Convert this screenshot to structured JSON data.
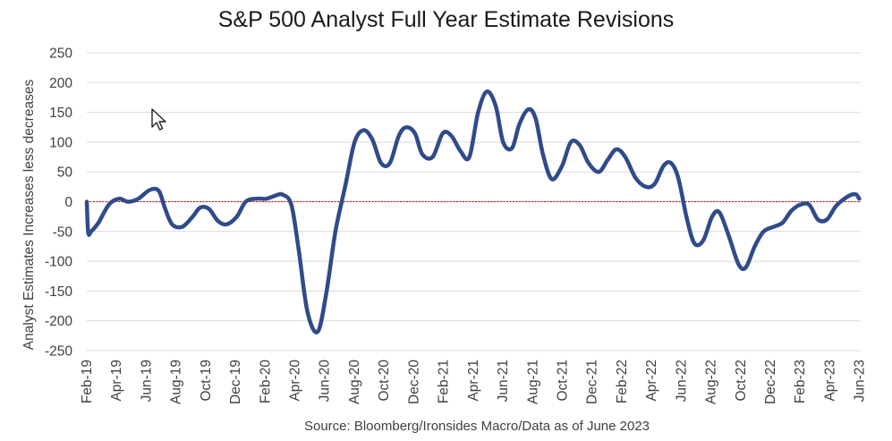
{
  "colors": {
    "line": "#2F4B8A",
    "zero_line": "#C00000",
    "grid": "#D9D9D9",
    "text": "#404040"
  },
  "chart_data": {
    "type": "line",
    "title": "S&P 500 Analyst Full Year Estimate Revisions",
    "xlabel": "",
    "ylabel": "Analyst Estimates Increases less decreases",
    "source": "Source: Bloomberg/Ironsides Macro/Data as of June 2023",
    "ylim": [
      -250,
      250
    ],
    "yticks": [
      250,
      200,
      150,
      100,
      50,
      0,
      -50,
      -100,
      -150,
      -200,
      -250
    ],
    "x_tick_labels": [
      "Feb-19",
      "Apr-19",
      "Jun-19",
      "Aug-19",
      "Oct-19",
      "Dec-19",
      "Feb-20",
      "Apr-20",
      "Jun-20",
      "Aug-20",
      "Oct-20",
      "Dec-20",
      "Feb-21",
      "Apr-21",
      "Jun-21",
      "Aug-21",
      "Oct-21",
      "Dec-21",
      "Feb-22",
      "Apr-22",
      "Jun-22",
      "Aug-22",
      "Oct-22",
      "Dec-22",
      "Feb-23",
      "Apr-23",
      "Jun-23"
    ],
    "x_range_months": [
      0,
      52.6
    ],
    "reference_line": 0,
    "series": [
      {
        "name": "Analyst Estimate Revisions",
        "x_months": [
          0,
          0.1,
          0.3,
          0.8,
          1.5,
          2.2,
          2.8,
          3.5,
          4.3,
          4.9,
          5.3,
          5.8,
          6.5,
          7.2,
          7.7,
          8.3,
          8.9,
          9.5,
          10.2,
          10.8,
          11.5,
          12.2,
          12.8,
          13.3,
          13.9,
          14.4,
          15.0,
          15.7,
          16.3,
          16.9,
          17.6,
          18.2,
          18.8,
          19.4,
          20.0,
          20.6,
          21.2,
          21.7,
          22.3,
          22.8,
          23.5,
          24.2,
          24.8,
          25.4,
          26.0,
          26.6,
          27.2,
          27.8,
          28.3,
          28.9,
          29.4,
          30.0,
          30.5,
          31.0,
          31.6,
          32.3,
          32.9,
          33.5,
          34.1,
          34.8,
          35.4,
          36.0,
          36.6,
          37.3,
          38.0,
          38.6,
          39.2,
          39.7,
          40.2,
          40.8,
          41.3,
          41.9,
          42.5,
          43.0,
          43.6,
          44.3,
          44.8,
          45.4,
          46.0,
          46.7,
          47.3,
          47.9,
          48.5,
          49.1,
          49.7,
          50.3,
          50.9,
          51.5,
          52.0,
          52.3,
          52.5
        ],
        "y": [
          0,
          -52,
          -50,
          -35,
          -5,
          5,
          0,
          5,
          20,
          18,
          -10,
          -38,
          -42,
          -25,
          -10,
          -12,
          -32,
          -38,
          -25,
          0,
          5,
          5,
          10,
          12,
          -5,
          -80,
          -185,
          -218,
          -150,
          -50,
          30,
          100,
          120,
          105,
          65,
          65,
          110,
          125,
          115,
          80,
          75,
          115,
          110,
          85,
          75,
          150,
          185,
          160,
          100,
          90,
          130,
          155,
          140,
          80,
          38,
          60,
          100,
          95,
          65,
          50,
          70,
          88,
          75,
          40,
          25,
          30,
          60,
          65,
          40,
          -30,
          -70,
          -65,
          -25,
          -18,
          -55,
          -105,
          -110,
          -75,
          -50,
          -42,
          -35,
          -15,
          -5,
          -5,
          -30,
          -30,
          -8,
          5,
          12,
          12,
          5
        ]
      }
    ]
  }
}
